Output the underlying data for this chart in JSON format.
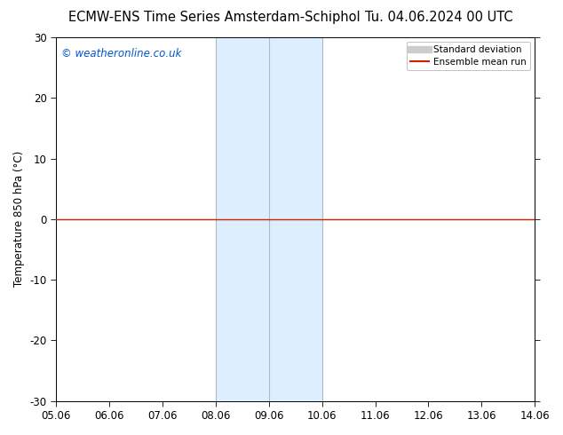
{
  "title_left": "ECMW-ENS Time Series Amsterdam-Schiphol",
  "title_right": "Tu. 04.06.2024 00 UTC",
  "ylabel": "Temperature 850 hPa (°C)",
  "xlim": [
    5.06,
    14.06
  ],
  "ylim": [
    -30,
    30
  ],
  "yticks": [
    -30,
    -20,
    -10,
    0,
    10,
    20,
    30
  ],
  "xticks": [
    5.06,
    6.06,
    7.06,
    8.06,
    9.06,
    10.06,
    11.06,
    12.06,
    13.06,
    14.06
  ],
  "xtick_labels": [
    "05.06",
    "06.06",
    "07.06",
    "08.06",
    "09.06",
    "10.06",
    "11.06",
    "12.06",
    "13.06",
    "14.06"
  ],
  "mean_line_y": 0.0,
  "mean_line_color": "#cc2200",
  "shade_x_start": 8.06,
  "shade_x_end": 10.06,
  "shade_divider": 9.06,
  "shade_color": "#ddeeff",
  "shade_edge_color": "#aabbcc",
  "background_color": "#ffffff",
  "watermark_text": "© weatheronline.co.uk",
  "watermark_color": "#0055cc",
  "legend_sd_color": "#cccccc",
  "legend_mean_color": "#cc2200",
  "title_fontsize": 10.5,
  "tick_fontsize": 8.5,
  "ylabel_fontsize": 8.5
}
